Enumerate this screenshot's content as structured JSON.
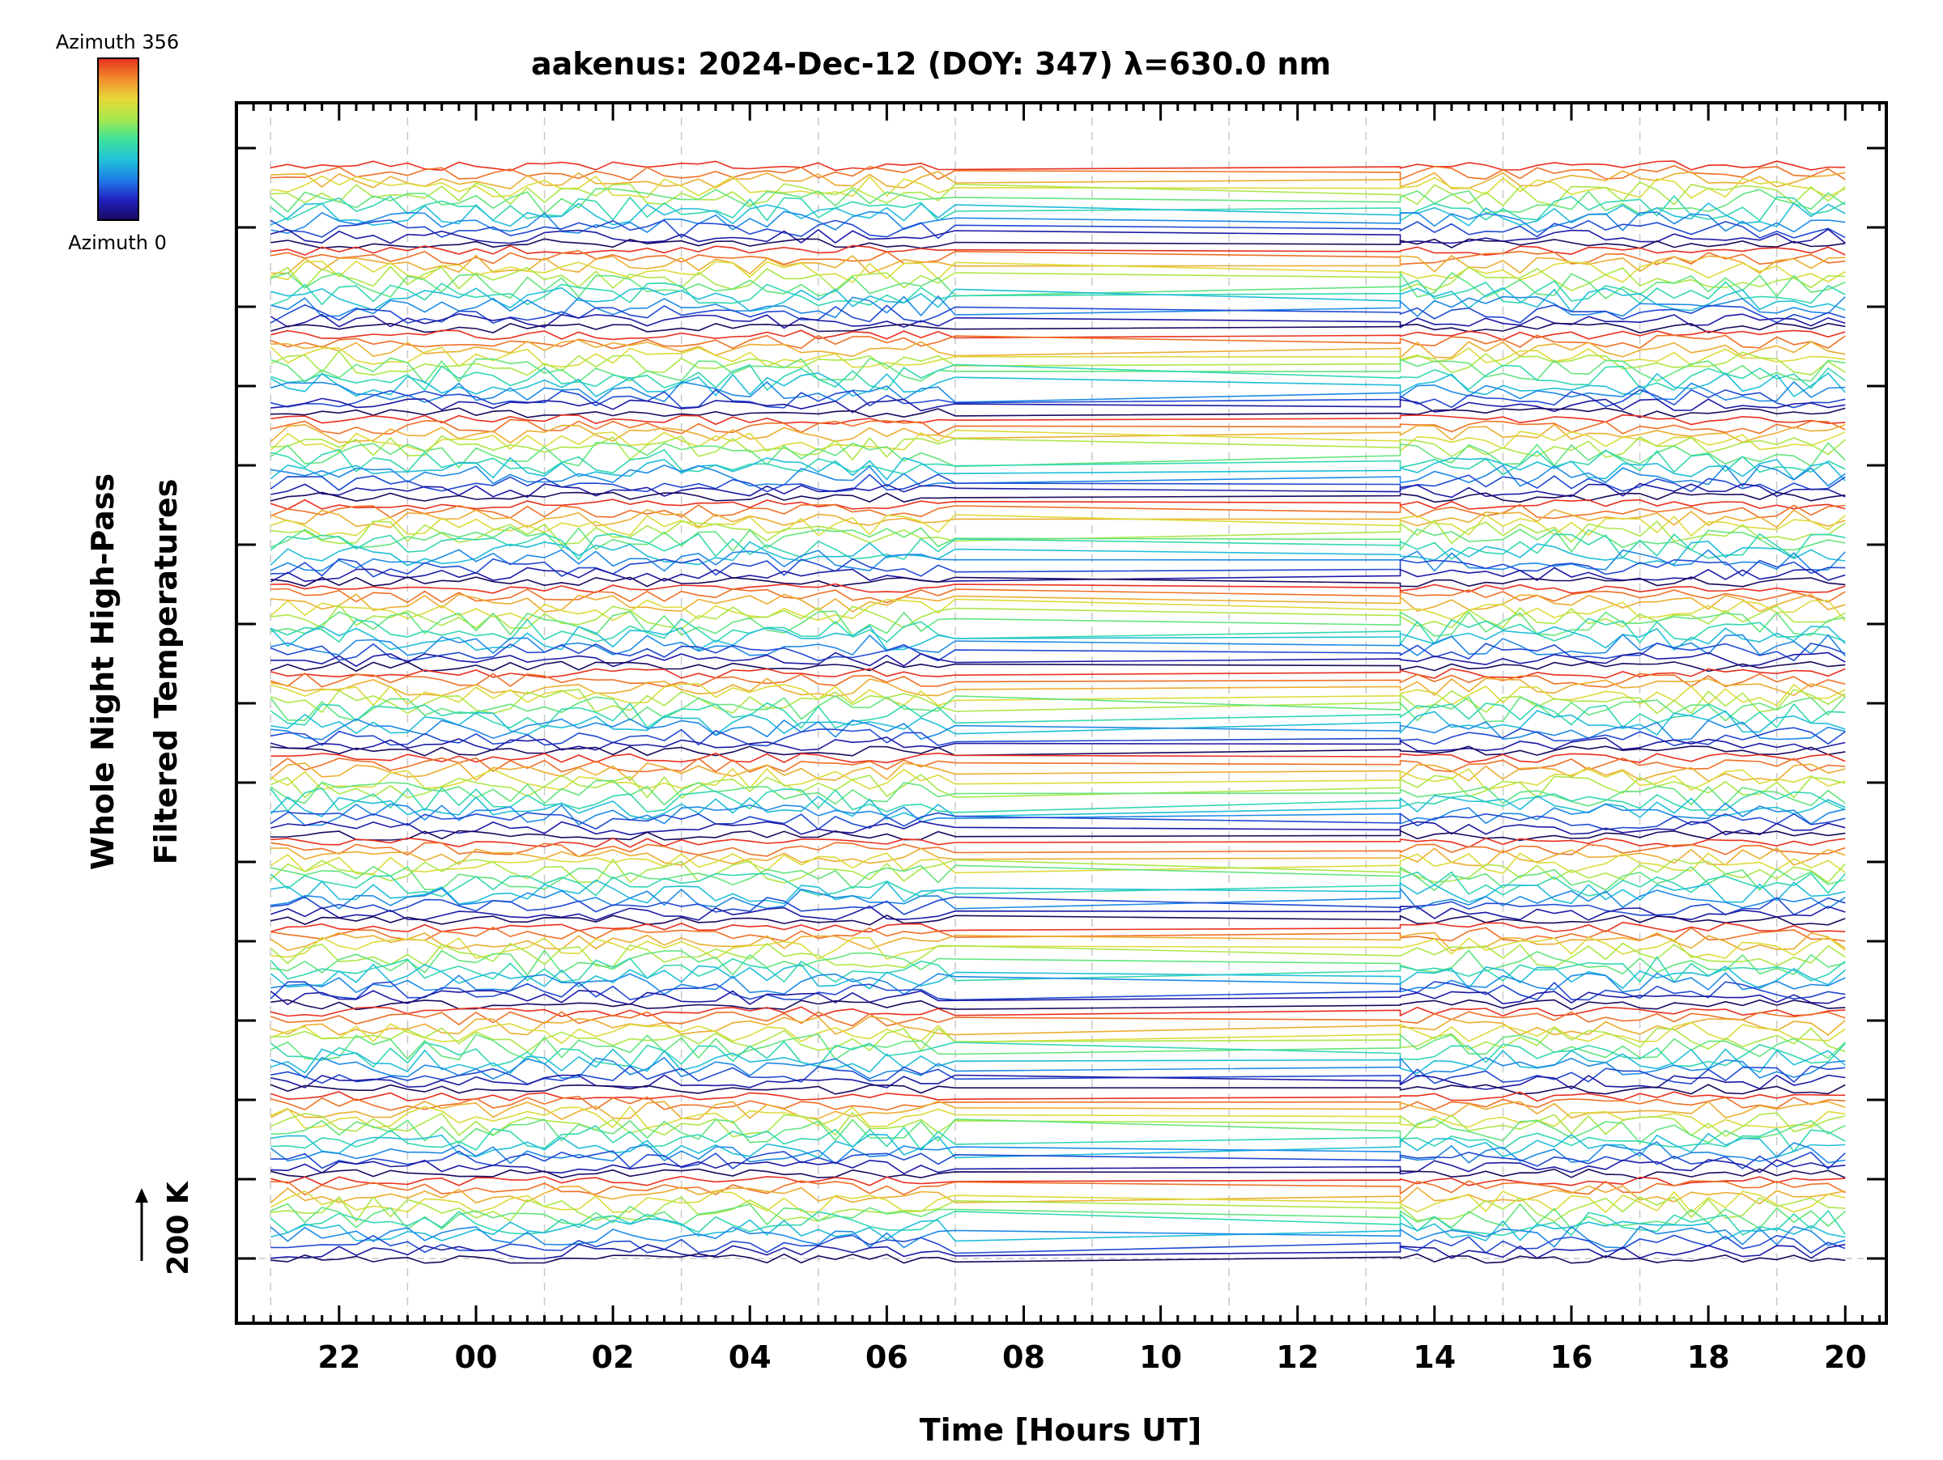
{
  "chart_data": {
    "type": "line",
    "title": "aakenus: 2024-Dec-12 (DOY: 347) λ=630.0 nm",
    "xlabel": "Time [Hours UT]",
    "ylabel_line1": "Whole Night High-Pass",
    "ylabel_line2": "Filtered Temperatures",
    "x_tick_labels": [
      "22",
      "00",
      "02",
      "04",
      "06",
      "08",
      "10",
      "12",
      "14",
      "16",
      "18",
      "20"
    ],
    "x_tick_hours": [
      22,
      24,
      26,
      28,
      30,
      32,
      34,
      36,
      38,
      40,
      42,
      44
    ],
    "xlim_hours": [
      20.5,
      44.6
    ],
    "data_start_hour": 21.0,
    "data_end_hour": 44.1,
    "gap_hours": [
      31.0,
      37.5
    ],
    "scale_label": "200 K",
    "scale_kelvin": 200,
    "n_trace_groups": 13,
    "traces_per_group": 12,
    "colorbar": {
      "top_label": "Azimuth 356",
      "bottom_label": "Azimuth 0",
      "azimuth_min": 0,
      "azimuth_max": 356,
      "stops": [
        "#1a0a5e",
        "#2020c0",
        "#1f7de8",
        "#21c4d8",
        "#3fe29a",
        "#a6e84a",
        "#e8d83a",
        "#f08a2a",
        "#e83020"
      ]
    },
    "grid": "vertical dashed at odd hours",
    "legend": "top-left colorbar"
  }
}
